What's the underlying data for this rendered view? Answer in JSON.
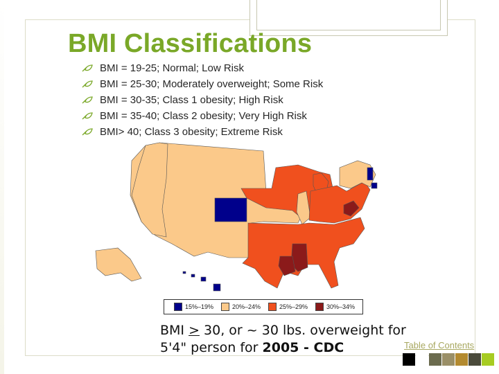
{
  "slide": {
    "title": "BMI Classifications",
    "bullets": [
      "BMI = 19-25; Normal; Low Risk",
      "BMI = 25-30; Moderately overweight; Some Risk",
      "BMI = 30-35; Class 1 obesity; High Risk",
      "BMI = 35-40; Class 2 obesity; Very High Risk",
      "BMI> 40; Class 3 obesity; Extreme Risk"
    ],
    "caption": {
      "part1": "BMI ",
      "gt": ">",
      "part2": " 30, or ~ 30 lbs. overweight for",
      "line2_prefix": "5'4\" person for ",
      "line2_bold": "2005 - CDC"
    },
    "toc_link": "Table of Contents"
  },
  "map_legend": [
    {
      "label": "15%–19%",
      "color": "#00008b"
    },
    {
      "label": "20%–24%",
      "color": "#fbc98a"
    },
    {
      "label": "25%–29%",
      "color": "#f0501e"
    },
    {
      "label": "30%–34%",
      "color": "#8b1a1a"
    }
  ],
  "colors": {
    "title": "#7aa828",
    "bullet_icon": "#7aa828",
    "low": "#00008b",
    "mid": "#fbc98a",
    "high": "#f0501e",
    "highest": "#8b1a1a"
  },
  "color_strip": [
    "#000000",
    "#ffffff",
    "#6b6b4e",
    "#9a8f67",
    "#b38a2f",
    "#4a4a3a",
    "#a7cc22",
    "#ffffff"
  ]
}
